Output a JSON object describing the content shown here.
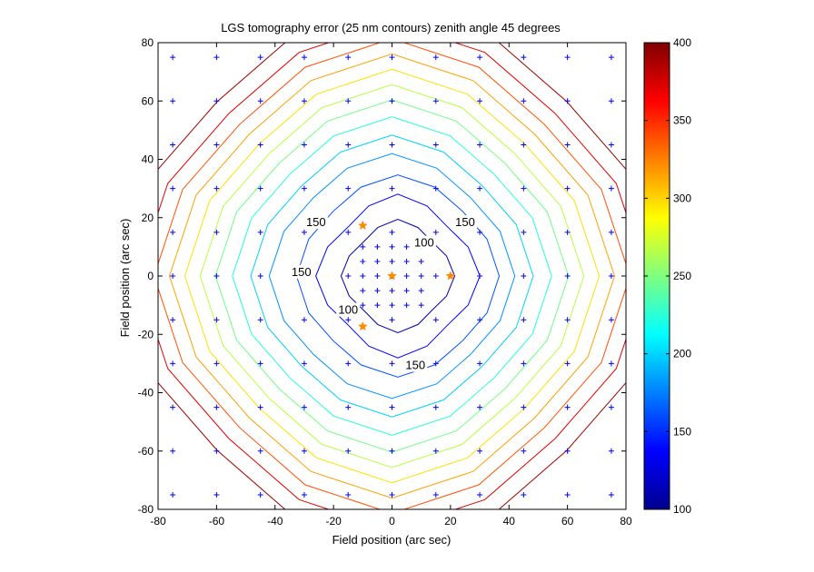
{
  "chart_data": {
    "type": "contour",
    "title": "LGS tomography error (25 nm contours) zenith angle 45 degrees",
    "xlabel": "Field position (arc sec)",
    "ylabel": "Field position (arc sec)",
    "xlim": [
      -80,
      80
    ],
    "ylim": [
      -80,
      80
    ],
    "xticks": [
      -80,
      -60,
      -40,
      -20,
      0,
      20,
      40,
      60,
      80
    ],
    "yticks": [
      -80,
      -60,
      -40,
      -20,
      0,
      20,
      40,
      60,
      80
    ],
    "colorbar": {
      "range": [
        100,
        400
      ],
      "ticks": [
        100,
        150,
        200,
        250,
        300,
        350,
        400
      ],
      "colormap": "jet"
    },
    "contour_levels": [
      {
        "value": 100,
        "radius": 18,
        "color": "#0000aa"
      },
      {
        "value": 125,
        "radius": 26,
        "color": "#0000ff"
      },
      {
        "value": 150,
        "radius": 33,
        "color": "#0050ff"
      },
      {
        "value": 175,
        "radius": 40,
        "color": "#0090ff"
      },
      {
        "value": 200,
        "radius": 46,
        "color": "#00d0ff"
      },
      {
        "value": 225,
        "radius": 52,
        "color": "#20ffd8"
      },
      {
        "value": 250,
        "radius": 57.5,
        "color": "#70ff88"
      },
      {
        "value": 275,
        "radius": 62.5,
        "color": "#b8ff40"
      },
      {
        "value": 300,
        "radius": 67.5,
        "color": "#ffe000"
      },
      {
        "value": 325,
        "radius": 72.5,
        "color": "#ffa000"
      },
      {
        "value": 350,
        "radius": 77.5,
        "color": "#ff5000"
      },
      {
        "value": 375,
        "radius": 83,
        "color": "#e00000"
      },
      {
        "value": 400,
        "radius": 89,
        "color": "#a00000"
      }
    ],
    "contour_labels": [
      {
        "text": "150",
        "x": -26,
        "y": 18
      },
      {
        "text": "150",
        "x": 25,
        "y": 18
      },
      {
        "text": "100",
        "x": 11,
        "y": 11
      },
      {
        "text": "150",
        "x": -31,
        "y": 1
      },
      {
        "text": "100",
        "x": -15,
        "y": -12
      },
      {
        "text": "150",
        "x": 8,
        "y": -31
      }
    ],
    "field_points_outer": [
      -75,
      -60,
      -45,
      -30,
      -15,
      0,
      15,
      30,
      45,
      60,
      75
    ],
    "field_points_inner": [
      -10,
      -5,
      0,
      5,
      10
    ],
    "guide_stars": [
      {
        "x": -10,
        "y": 17.3
      },
      {
        "x": 20,
        "y": 0
      },
      {
        "x": -10,
        "y": -17.3
      },
      {
        "x": 0,
        "y": 0
      }
    ],
    "colors": {
      "field_point": "#0000ff",
      "guide_star": "#ff8800"
    }
  }
}
